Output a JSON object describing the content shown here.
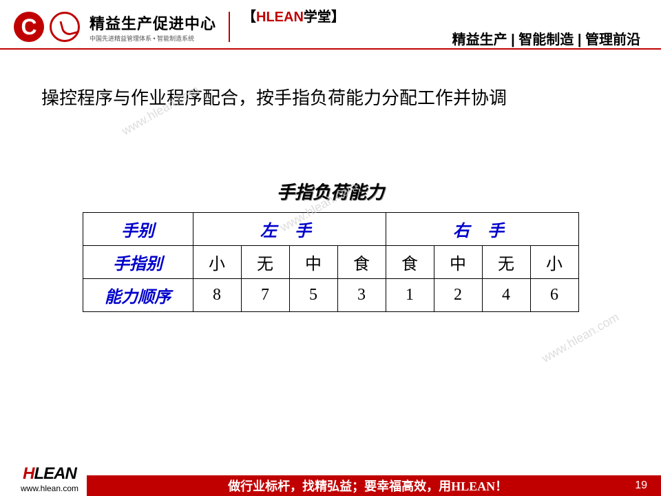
{
  "header": {
    "logo_title": "精益生产促进中心",
    "logo_subtitle": "中国先进精益管理体系 • 智能制造系统",
    "hlean_bracket_l": "【",
    "hlean_red": "HLEAN",
    "hlean_black": "学堂",
    "hlean_bracket_r": "】",
    "slogan": "精益生产 | 智能制造 | 管理前沿"
  },
  "main": {
    "title": "操控程序与作业程序配合，按手指负荷能力分配工作并协调",
    "table_title": "手指负荷能力"
  },
  "table": {
    "row_headers": [
      "手别",
      "手指别",
      "能力顺序"
    ],
    "hand_headers": [
      "左 手",
      "右 手"
    ],
    "fingers": [
      "小",
      "无",
      "中",
      "食",
      "食",
      "中",
      "无",
      "小"
    ],
    "ranks": [
      "8",
      "7",
      "5",
      "3",
      "1",
      "2",
      "4",
      "6"
    ],
    "colors": {
      "header_color": "#0000cc",
      "cell_color": "#000000",
      "border_color": "#000000"
    }
  },
  "watermark": "www.hlean.com",
  "footer": {
    "logo_h": "H",
    "logo_lean": "LEAN",
    "url": "www.hlean.com",
    "slogan": "做行业标杆，找精弘益；要幸福高效，用HLEAN！",
    "page": "19"
  }
}
